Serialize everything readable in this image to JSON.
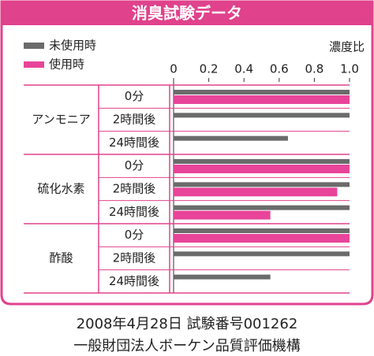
{
  "chart_data": {
    "type": "bar",
    "orientation": "horizontal",
    "title": "消臭試験データ",
    "axis_label": "濃度比",
    "groups": [
      "アンモニア",
      "硫化水素",
      "酢酸"
    ],
    "categories": [
      "0分",
      "2時間後",
      "24時間後",
      "0分",
      "2時間後",
      "24時間後",
      "0分",
      "2時間後",
      "24時間後"
    ],
    "series": [
      {
        "name": "未使用時",
        "color": "#6b6b6b",
        "values": [
          1.0,
          1.0,
          0.65,
          1.0,
          1.0,
          1.0,
          1.0,
          1.0,
          0.55
        ]
      },
      {
        "name": "使用時",
        "color": "#e8449a",
        "values": [
          1.0,
          0,
          0,
          1.0,
          0.93,
          0.55,
          1.0,
          0,
          0
        ]
      }
    ],
    "xlim": [
      0,
      1
    ],
    "xticks": [
      0,
      0.2,
      0.4,
      0.6,
      0.8,
      {
        "value": 1,
        "label": "1.0"
      }
    ],
    "grid": false,
    "legend": "top-left",
    "footnotes": [
      "2008年4月28日 試験番号001262",
      "一般財団法人ボーケン品質評価機構"
    ]
  }
}
